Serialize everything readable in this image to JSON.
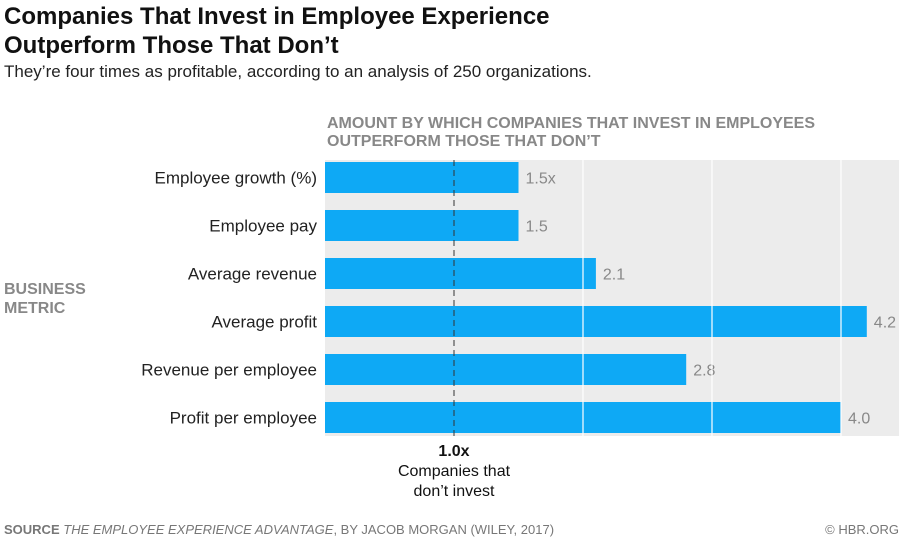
{
  "chart_data": {
    "type": "bar",
    "orientation": "horizontal",
    "title": "Companies That Invest in Employee Experience Outperform Those That Don’t",
    "subtitle": "They’re four times as profitable, according to an analysis of 250 organizations.",
    "xlabel": "AMOUNT BY WHICH COMPANIES THAT INVEST IN EMPLOYEES OUTPERFORM THOSE THAT DON’T",
    "ylabel": "BUSINESS METRIC",
    "categories": [
      "Employee growth (%)",
      "Employee pay",
      "Average revenue",
      "Average profit",
      "Revenue per employee",
      "Profit per employee"
    ],
    "values": [
      1.5,
      1.5,
      2.1,
      4.2,
      2.8,
      4.0
    ],
    "data_labels": [
      "1.5x",
      "1.5",
      "2.1",
      "4.2",
      "2.8",
      "4.0"
    ],
    "xlim": [
      0,
      4.45
    ],
    "gridlines": [
      1,
      2,
      3,
      4
    ],
    "reference_line": {
      "value": 1.0,
      "label": "1.0x",
      "caption_line1": "Companies that",
      "caption_line2": "don’t invest"
    },
    "bar_color": "#0ea9f5",
    "background_color": "#ececec"
  },
  "footer": {
    "source_label": "SOURCE",
    "source_title": "THE EMPLOYEE EXPERIENCE ADVANTAGE",
    "source_rest": ", BY JACOB MORGAN (WILEY, 2017)",
    "credit": "© HBR.ORG"
  }
}
